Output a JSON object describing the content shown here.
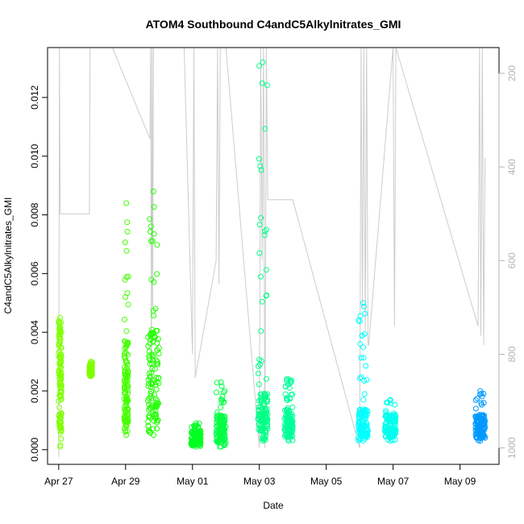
{
  "chart_data": {
    "type": "scatter",
    "title": "ATOM4 Southbound C4andC5Alkylnitrates_GMI",
    "xlabel": "Date",
    "ylabel": "C4andC5Alkylnitrates_GMI",
    "x_unit": "days",
    "x_ticks": [
      "Apr 27",
      "Apr 29",
      "May 01",
      "May 03",
      "May 05",
      "May 07",
      "May 09"
    ],
    "x_tick_values": [
      "2018-04-27",
      "2018-04-29",
      "2018-05-01",
      "2018-05-03",
      "2018-05-05",
      "2018-05-07",
      "2018-05-09"
    ],
    "xlim": [
      "2018-04-26 16:00",
      "2018-05-10 04:00"
    ],
    "ylim": [
      -0.0005,
      0.0137
    ],
    "y_ticks": [
      "0.000",
      "0.002",
      "0.004",
      "0.006",
      "0.008",
      "0.010",
      "0.012"
    ],
    "y_tick_values": [
      0,
      0.002,
      0.004,
      0.006,
      0.008,
      0.01,
      0.012
    ],
    "y2_ticks": [
      "200",
      "400",
      "600",
      "800",
      "1000"
    ],
    "y2_tick_values": [
      200,
      400,
      600,
      800,
      1000
    ],
    "y2_lim": [
      1035,
      145
    ],
    "y2_reversed": true,
    "marker": "open-circle",
    "series": [
      {
        "color": "#7fff00",
        "segments": [
          {
            "t0": "2018-04-27 00:00",
            "t1": "2018-04-27 02:00",
            "ylo": 0.0001,
            "yhi": 0.0045,
            "ymid": 0.0025
          }
        ]
      },
      {
        "color": "#7fff00",
        "segments": [
          {
            "t0": "2018-04-27 22:00",
            "t1": "2018-04-28 00:00",
            "ylo": 0.0025,
            "yhi": 0.003,
            "ymid": 0.0027
          }
        ]
      },
      {
        "color": "#44ff00",
        "segments": [
          {
            "t0": "2018-04-28 23:00",
            "t1": "2018-04-29 02:00",
            "ylo": 0.0005,
            "yhi": 0.0084,
            "ymid": 0.0023
          }
        ]
      },
      {
        "color": "#22ff00",
        "segments": [
          {
            "t0": "2018-04-29 16:00",
            "t1": "2018-04-30 00:00",
            "ylo": 0.0005,
            "yhi": 0.0088,
            "ymid": 0.0025
          }
        ]
      },
      {
        "color": "#00ff22",
        "segments": [
          {
            "t0": "2018-04-30 23:00",
            "t1": "2018-05-01 06:00",
            "ylo": 0.0001,
            "yhi": 0.0009,
            "ymid": 0.0004
          }
        ]
      },
      {
        "color": "#00ff44",
        "segments": [
          {
            "t0": "2018-05-01 17:00",
            "t1": "2018-05-02 00:00",
            "ylo": 0.0001,
            "yhi": 0.0023,
            "ymid": 0.0007
          }
        ]
      },
      {
        "color": "#00ff88",
        "segments": [
          {
            "t0": "2018-05-02 23:00",
            "t1": "2018-05-03 06:00",
            "ylo": 0.0003,
            "yhi": 0.0132,
            "ymid": 0.0012
          }
        ]
      },
      {
        "color": "#00ff99",
        "segments": [
          {
            "t0": "2018-05-03 18:00",
            "t1": "2018-05-04 00:00",
            "ylo": 0.0003,
            "yhi": 0.0024,
            "ymid": 0.0009
          }
        ]
      },
      {
        "color": "#00ffff",
        "segments": [
          {
            "t0": "2018-05-05 23:00",
            "t1": "2018-05-06 06:00",
            "ylo": 0.0003,
            "yhi": 0.005,
            "ymid": 0.0009
          }
        ]
      },
      {
        "color": "#00ffee",
        "segments": [
          {
            "t0": "2018-05-06 18:00",
            "t1": "2018-05-07 02:00",
            "ylo": 0.0003,
            "yhi": 0.0017,
            "ymid": 0.0008
          }
        ]
      },
      {
        "color": "#0099ff",
        "segments": [
          {
            "t0": "2018-05-09 11:00",
            "t1": "2018-05-09 18:00",
            "ylo": 0.0003,
            "yhi": 0.002,
            "ymid": 0.0008
          }
        ]
      }
    ],
    "pressure_series": {
      "color": "#cccccc",
      "x": [
        "2018-04-27 00:00",
        "2018-04-27 00:30",
        "2018-04-27 01:00",
        "2018-04-27 22:00",
        "2018-04-27 22:30",
        "2018-04-28 14:30",
        "2018-04-29 17:30",
        "2018-04-29 18:00",
        "2018-04-29 18:30",
        "2018-04-29 19:00",
        "2018-04-29 19:30",
        "2018-04-29 20:00",
        "2018-04-30 00:00",
        "2018-04-30 18:00",
        "2018-05-01 00:00",
        "2018-05-01 01:00",
        "2018-05-01 02:00",
        "2018-05-01 17:00",
        "2018-05-01 18:00",
        "2018-05-01 19:00",
        "2018-05-01 20:00",
        "2018-05-02 00:00",
        "2018-05-03 00:00",
        "2018-05-03 01:00",
        "2018-05-03 02:00",
        "2018-05-03 03:00",
        "2018-05-03 04:00",
        "2018-05-03 05:00",
        "2018-05-03 06:00",
        "2018-05-04 00:00",
        "2018-05-06 00:00",
        "2018-05-06 01:00",
        "2018-05-06 02:00",
        "2018-05-06 03:00",
        "2018-05-06 04:00",
        "2018-05-06 05:00",
        "2018-05-06 06:00",
        "2018-05-06 06:30",
        "2018-05-07 00:00",
        "2018-05-07 01:00",
        "2018-05-07 02:00",
        "2018-05-09 13:00",
        "2018-05-09 14:00",
        "2018-05-09 15:00",
        "2018-05-09 16:00",
        "2018-05-09 17:00",
        "2018-05-09 18:00"
      ],
      "p": [
        1020,
        145,
        500,
        500,
        145,
        145,
        340,
        145,
        900,
        145,
        700,
        145,
        145,
        145,
        800,
        145,
        850,
        600,
        145,
        650,
        145,
        145,
        1000,
        145,
        600,
        145,
        1000,
        145,
        470,
        470,
        1000,
        145,
        700,
        145,
        750,
        145,
        780,
        780,
        145,
        740,
        145,
        740,
        145,
        760,
        145,
        780,
        380
      ]
    }
  }
}
